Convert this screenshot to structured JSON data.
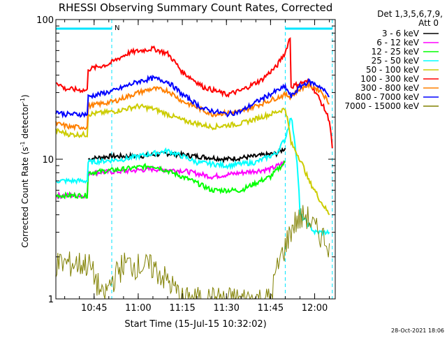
{
  "chart_data": {
    "type": "line",
    "title": "RHESSI Observing Summary Count Rates, Corrected",
    "xlabel": "Start Time (15-Jul-15 10:32:02)",
    "ylabel_main": "Corrected Count Rate (s",
    "ylabel_sup1": "-1",
    "ylabel_mid": " detector",
    "ylabel_sup2": "-1",
    "ylabel_end": ")",
    "yscale": "log",
    "ylim": [
      1,
      100
    ],
    "xlim_minutes": [
      "10:32",
      "12:07"
    ],
    "x_ticks": [
      "10:45",
      "11:00",
      "11:15",
      "11:30",
      "11:45",
      "12:00"
    ],
    "y_ticks": [
      "1",
      "10",
      "100"
    ],
    "legend_header": [
      "Det 1,3,5,6,7,9,",
      "Att 0"
    ],
    "legend_position": "top-right, outside plot",
    "footer_date": "28-Oct-2021 18:06",
    "marker_label": "N",
    "series": [
      {
        "name": "3 - 6 keV",
        "color": "#000000",
        "points": [
          [
            "10:43",
            10
          ],
          [
            "10:50",
            10.5
          ],
          [
            "11:00",
            10.5
          ],
          [
            "11:10",
            11
          ],
          [
            "11:20",
            10.5
          ],
          [
            "11:30",
            10
          ],
          [
            "11:40",
            10.5
          ],
          [
            "11:47",
            11
          ],
          [
            "11:50",
            12
          ]
        ]
      },
      {
        "name": "6 - 12 keV",
        "color": "#ff00ff",
        "points": [
          [
            "10:32",
            5.5
          ],
          [
            "10:43",
            5.5
          ],
          [
            "10:43",
            8
          ],
          [
            "10:55",
            8.2
          ],
          [
            "11:05",
            8.5
          ],
          [
            "11:15",
            8.3
          ],
          [
            "11:25",
            7.5
          ],
          [
            "11:35",
            8
          ],
          [
            "11:45",
            8.5
          ],
          [
            "11:50",
            9.5
          ]
        ]
      },
      {
        "name": "12 - 25 keV",
        "color": "#00ff00",
        "points": [
          [
            "10:32",
            5.5
          ],
          [
            "10:43",
            5.5
          ],
          [
            "10:43",
            8
          ],
          [
            "10:55",
            8.5
          ],
          [
            "11:05",
            9
          ],
          [
            "11:15",
            7.5
          ],
          [
            "11:25",
            6
          ],
          [
            "11:35",
            6
          ],
          [
            "11:45",
            7.5
          ],
          [
            "11:50",
            9.5
          ]
        ]
      },
      {
        "name": "25 - 50 keV",
        "color": "#00ffff",
        "points": [
          [
            "10:32",
            7
          ],
          [
            "10:43",
            7
          ],
          [
            "10:43",
            9.5
          ],
          [
            "10:55",
            10
          ],
          [
            "11:05",
            11
          ],
          [
            "11:10",
            11.5
          ],
          [
            "11:20",
            9.5
          ],
          [
            "11:30",
            9
          ],
          [
            "11:40",
            9.5
          ],
          [
            "11:47",
            11
          ],
          [
            "11:50",
            14
          ],
          [
            "11:52",
            20
          ],
          [
            "11:55",
            4
          ],
          [
            "12:00",
            3
          ],
          [
            "12:05",
            3
          ]
        ]
      },
      {
        "name": "50 - 100 keV",
        "color": "#cccc00",
        "points": [
          [
            "10:32",
            16
          ],
          [
            "10:37",
            15
          ],
          [
            "10:43",
            15
          ],
          [
            "10:43",
            21
          ],
          [
            "10:52",
            22
          ],
          [
            "11:00",
            24
          ],
          [
            "11:05",
            23
          ],
          [
            "11:15",
            19
          ],
          [
            "11:25",
            17
          ],
          [
            "11:35",
            18
          ],
          [
            "11:45",
            21
          ],
          [
            "11:50",
            23
          ],
          [
            "11:52",
            13
          ],
          [
            "11:55",
            10
          ],
          [
            "11:58",
            7
          ],
          [
            "12:02",
            5
          ],
          [
            "12:05",
            4
          ]
        ]
      },
      {
        "name": "100 - 300 keV",
        "color": "#ff0000",
        "points": [
          [
            "10:32",
            36
          ],
          [
            "10:35",
            32
          ],
          [
            "10:43",
            31
          ],
          [
            "10:43",
            44
          ],
          [
            "10:50",
            48
          ],
          [
            "10:57",
            58
          ],
          [
            "11:05",
            62
          ],
          [
            "11:10",
            57
          ],
          [
            "11:15",
            42
          ],
          [
            "11:22",
            33
          ],
          [
            "11:30",
            29
          ],
          [
            "11:35",
            31
          ],
          [
            "11:42",
            37
          ],
          [
            "11:47",
            46
          ],
          [
            "11:50",
            58
          ],
          [
            "11:52",
            78
          ],
          [
            "11:52",
            33
          ],
          [
            "11:55",
            35
          ],
          [
            "11:58",
            36
          ],
          [
            "12:02",
            26
          ],
          [
            "12:05",
            19
          ],
          [
            "12:06",
            12
          ]
        ]
      },
      {
        "name": "300 - 800 keV",
        "color": "#ff8000",
        "points": [
          [
            "10:32",
            18
          ],
          [
            "10:37",
            17
          ],
          [
            "10:43",
            17
          ],
          [
            "10:43",
            24
          ],
          [
            "10:52",
            26
          ],
          [
            "11:00",
            30
          ],
          [
            "11:05",
            32
          ],
          [
            "11:10",
            31
          ],
          [
            "11:15",
            26
          ],
          [
            "11:25",
            21
          ],
          [
            "11:35",
            22
          ],
          [
            "11:42",
            25
          ],
          [
            "11:50",
            29
          ],
          [
            "11:52",
            28
          ],
          [
            "11:55",
            32
          ],
          [
            "11:58",
            34
          ],
          [
            "12:02",
            31
          ],
          [
            "12:05",
            25
          ]
        ]
      },
      {
        "name": "800 - 7000 keV",
        "color": "#0000ff",
        "points": [
          [
            "10:32",
            22
          ],
          [
            "10:35",
            21
          ],
          [
            "10:43",
            21
          ],
          [
            "10:43",
            28
          ],
          [
            "10:52",
            31
          ],
          [
            "11:00",
            36
          ],
          [
            "11:05",
            38
          ],
          [
            "11:10",
            36
          ],
          [
            "11:15",
            29
          ],
          [
            "11:22",
            23
          ],
          [
            "11:30",
            21
          ],
          [
            "11:35",
            22
          ],
          [
            "11:42",
            27
          ],
          [
            "11:50",
            33
          ],
          [
            "11:52",
            28
          ],
          [
            "11:55",
            33
          ],
          [
            "11:58",
            36
          ],
          [
            "12:02",
            33
          ],
          [
            "12:05",
            28
          ]
        ]
      },
      {
        "name": "7000 - 15000 keV",
        "color": "#808000",
        "points": [
          [
            "10:32",
            1.8
          ],
          [
            "10:43",
            1.8
          ],
          [
            "10:48",
            1
          ],
          [
            "10:55",
            1.8
          ],
          [
            "11:05",
            1.7
          ],
          [
            "11:15",
            1
          ],
          [
            "11:25",
            1
          ],
          [
            "11:35",
            1
          ],
          [
            "11:45",
            1
          ],
          [
            "11:50",
            2.4
          ],
          [
            "11:53",
            3.5
          ],
          [
            "11:57",
            4
          ],
          [
            "12:00",
            3.2
          ],
          [
            "12:05",
            2.5
          ]
        ]
      }
    ]
  }
}
